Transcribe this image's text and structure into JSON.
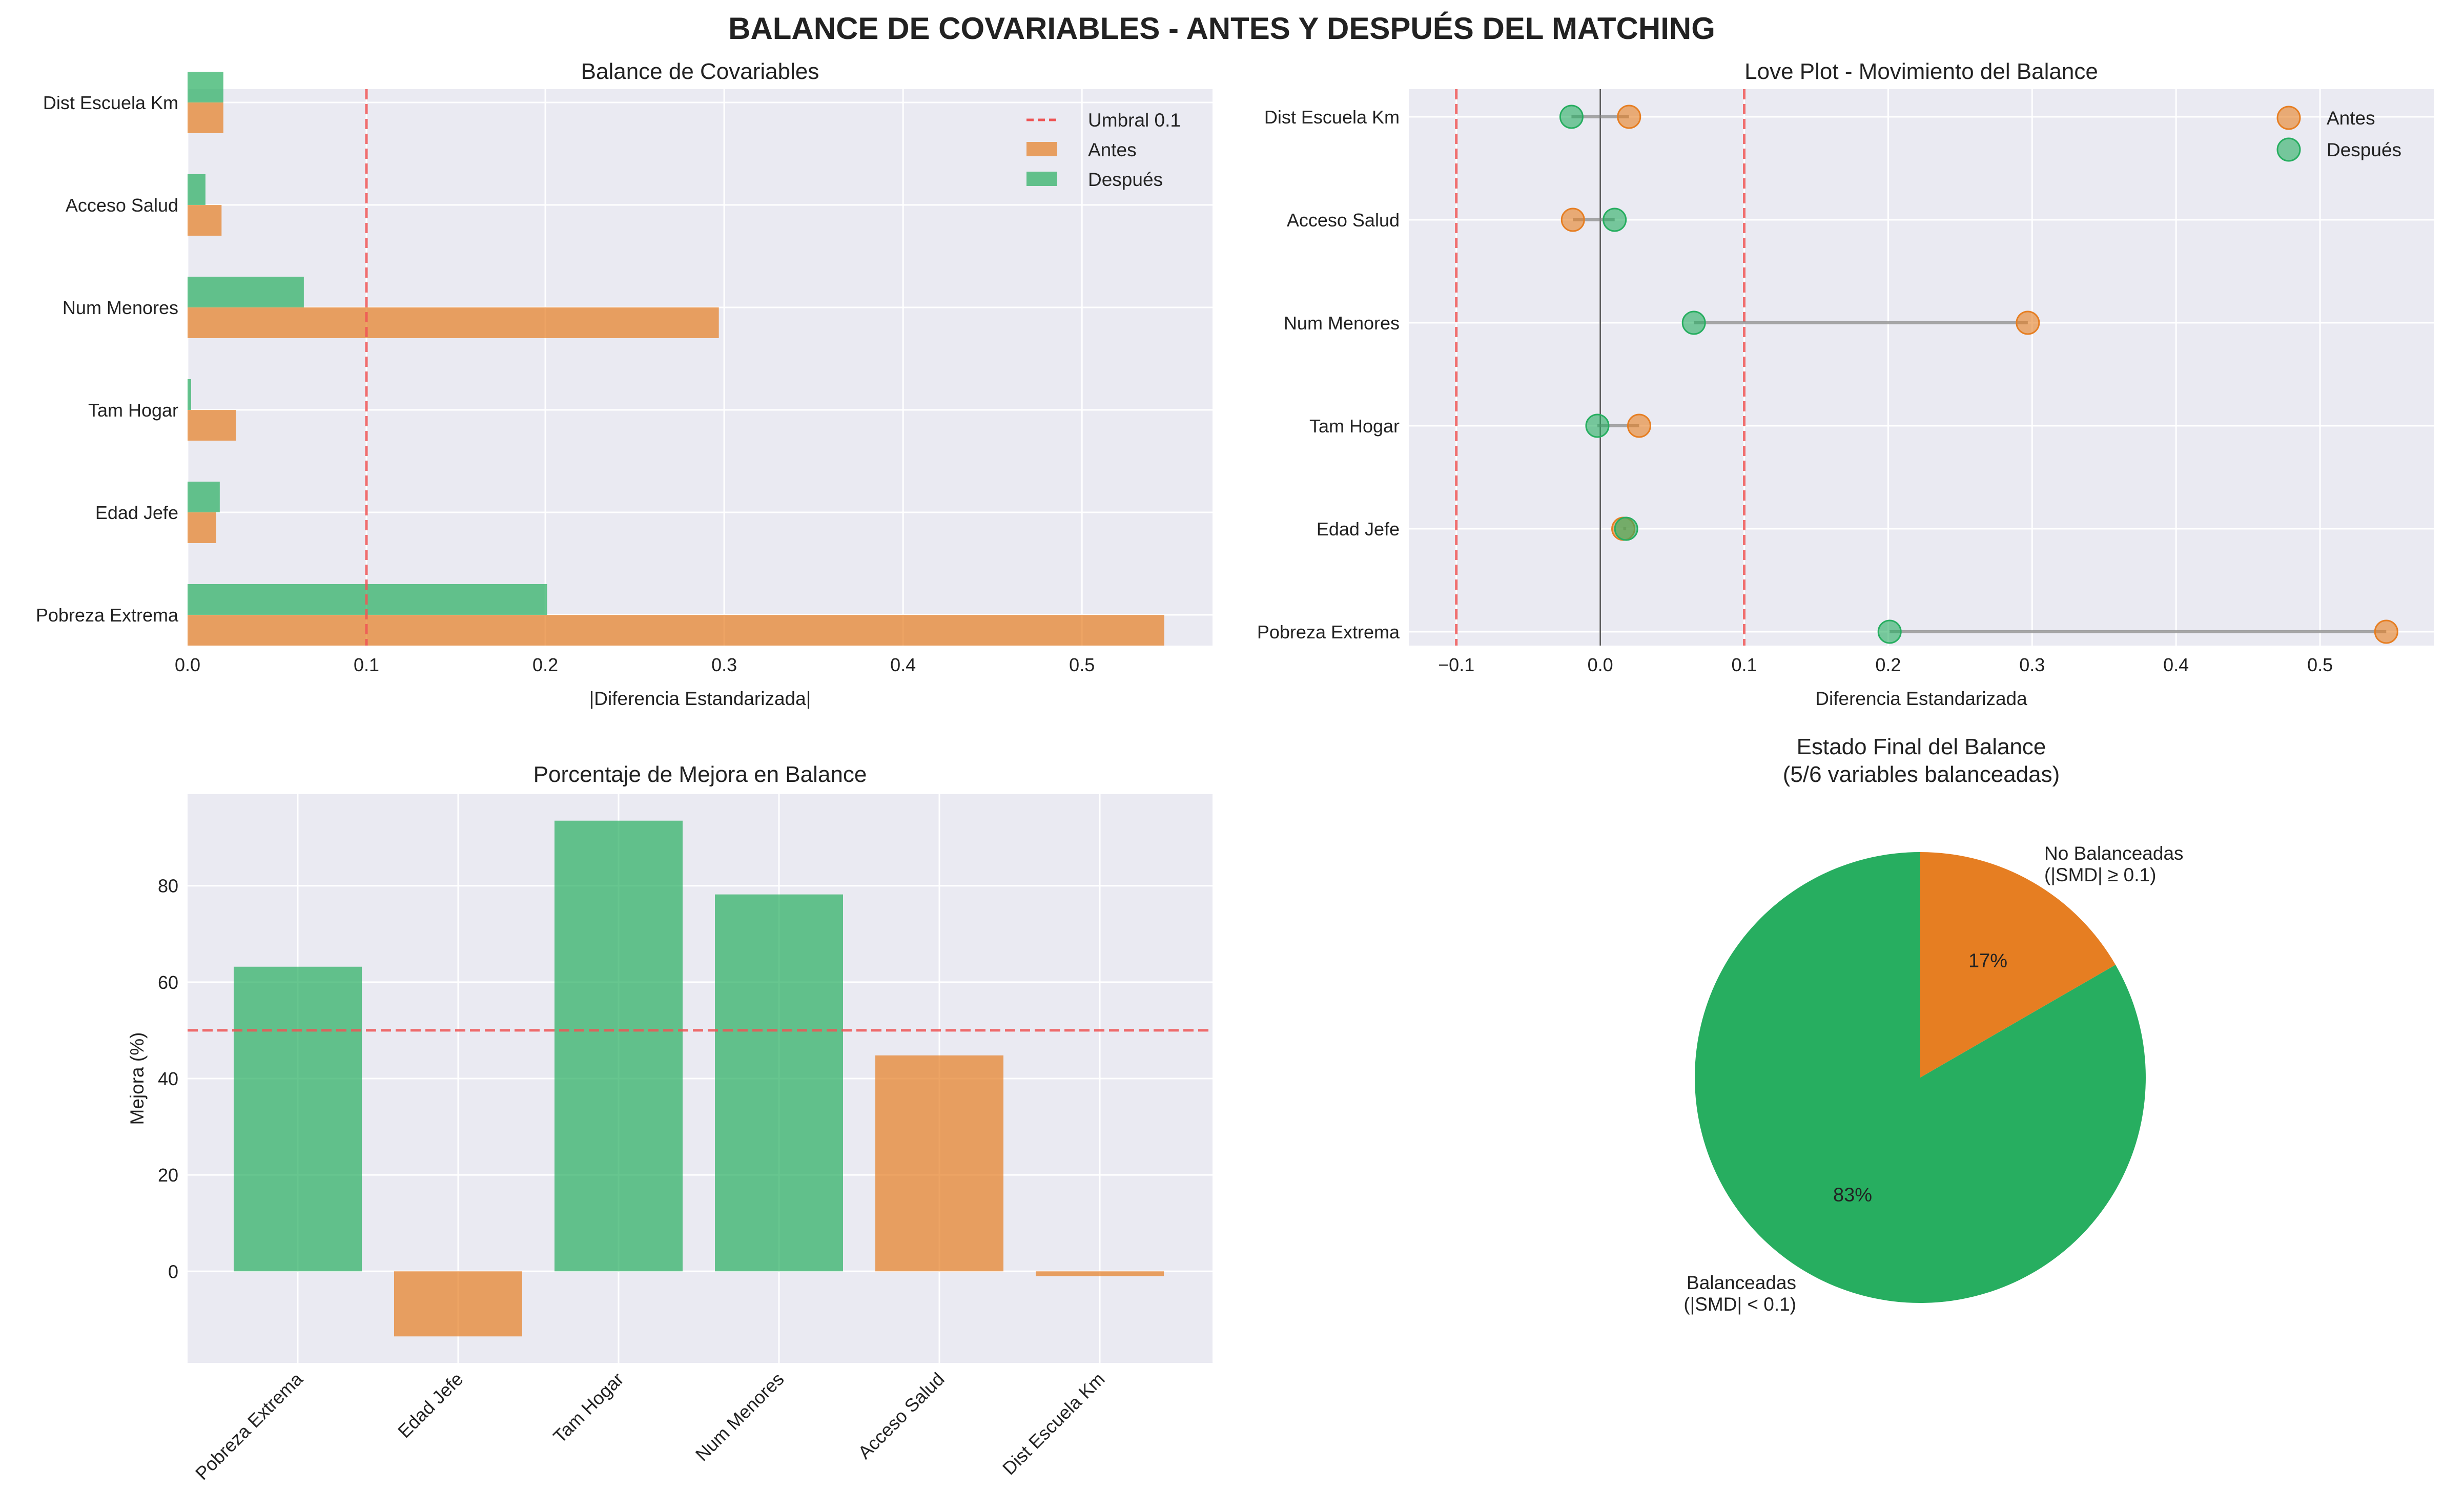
{
  "figure_title": "BALANCE DE COVARIABLES - ANTES Y DESPUÉS DEL MATCHING",
  "colors": {
    "antes": "#e67e22",
    "despues": "#27ae60",
    "threshold": "#ee5555",
    "panel_bg": "#eaeaf2",
    "grid": "#ffffff"
  },
  "chart_data": [
    {
      "id": "balance",
      "type": "bar",
      "orientation": "horizontal",
      "title": "Balance de Covariables",
      "xlabel": "|Diferencia Estandarizada|",
      "ylabel": "",
      "categories": [
        "Pobreza Extrema",
        "Edad Jefe",
        "Tam Hogar",
        "Num Menores",
        "Acceso Salud",
        "Dist Escuela Km"
      ],
      "series": [
        {
          "name": "Antes",
          "values": [
            0.546,
            0.016,
            0.027,
            0.297,
            0.019,
            0.02
          ]
        },
        {
          "name": "Después",
          "values": [
            0.201,
            0.018,
            0.002,
            0.065,
            0.01,
            0.02
          ]
        }
      ],
      "threshold": {
        "label": "Umbral 0.1",
        "value": 0.1
      },
      "xlim": [
        0,
        0.573
      ],
      "xticks": [
        "0.0",
        "0.1",
        "0.2",
        "0.3",
        "0.4",
        "0.5"
      ],
      "legend_position": "top-right",
      "grid": true
    },
    {
      "id": "love",
      "type": "scatter",
      "title": "Love Plot - Movimiento del Balance",
      "xlabel": "Diferencia Estandarizada",
      "ylabel": "",
      "categories": [
        "Pobreza Extrema",
        "Edad Jefe",
        "Tam Hogar",
        "Num Menores",
        "Acceso Salud",
        "Dist Escuela Km"
      ],
      "series": [
        {
          "name": "Antes",
          "values": [
            0.546,
            0.016,
            0.027,
            0.297,
            -0.019,
            0.02
          ]
        },
        {
          "name": "Después",
          "values": [
            0.201,
            0.018,
            -0.002,
            0.065,
            0.01,
            -0.02
          ]
        }
      ],
      "thresholds": [
        -0.1,
        0.1
      ],
      "zero_line": 0,
      "xlim": [
        -0.133,
        0.579
      ],
      "xticks": [
        "−0.1",
        "0.0",
        "0.1",
        "0.2",
        "0.3",
        "0.4",
        "0.5"
      ],
      "legend_position": "top-right",
      "grid": true
    },
    {
      "id": "mejora",
      "type": "bar",
      "title": "Porcentaje de Mejora en Balance",
      "xlabel": "",
      "ylabel": "Mejora (%)",
      "categories": [
        "Pobreza Extrema",
        "Edad Jefe",
        "Tam Hogar",
        "Num Menores",
        "Acceso Salud",
        "Dist Escuela Km"
      ],
      "values": [
        63.2,
        -13.5,
        93.5,
        78.2,
        44.8,
        -1.0
      ],
      "bar_colors": [
        "despues",
        "antes",
        "despues",
        "despues",
        "antes",
        "antes"
      ],
      "reference_line": 50,
      "ylim": [
        -19,
        99
      ],
      "yticks": [
        "0",
        "20",
        "40",
        "60",
        "80"
      ],
      "grid": true
    },
    {
      "id": "estado",
      "type": "pie",
      "title": "Estado Final del Balance",
      "subtitle": "(5/6 variables balanceadas)",
      "slices": [
        {
          "label_line1": "Balanceadas",
          "label_line2": "(|SMD| < 0.1)",
          "value": 5,
          "pct_label": "83%",
          "color": "despues"
        },
        {
          "label_line1": "No Balanceadas",
          "label_line2": "(|SMD| ≥ 0.1)",
          "value": 1,
          "pct_label": "17%",
          "color": "antes"
        }
      ]
    }
  ]
}
